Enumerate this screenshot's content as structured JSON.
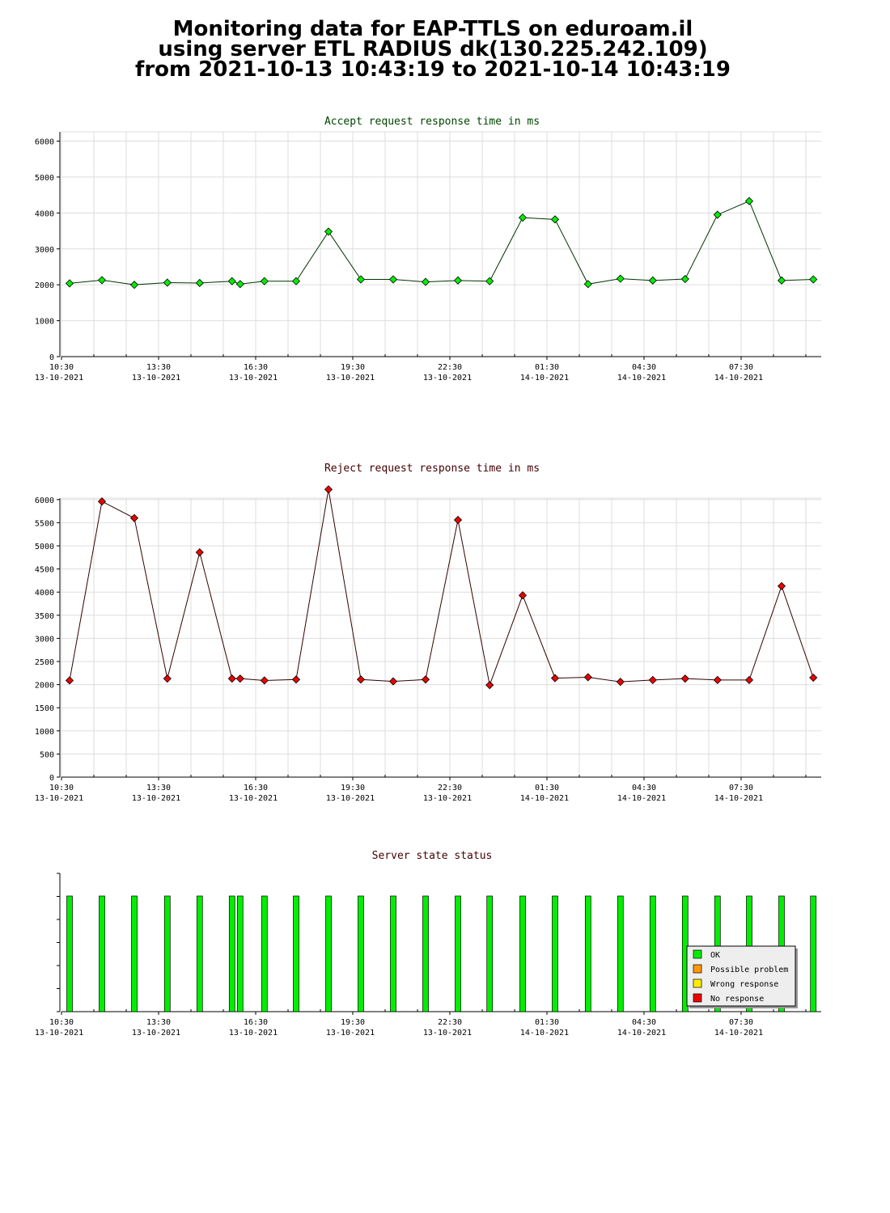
{
  "title_lines": [
    "Monitoring data for EAP-TTLS on eduroam.il",
    "using server ETL RADIUS dk(130.225.242.109)",
    "from 2021-10-13 10:43:19 to 2021-10-14 10:43:19"
  ],
  "colors": {
    "accept_line": "#003300",
    "accept_marker": "#00ee00",
    "reject_line": "#330000",
    "reject_marker": "#ee0000",
    "accept_title": "#004400",
    "reject_title": "#440000",
    "status_title": "#440000",
    "grid": "#dddddd",
    "ok": "#00ee00",
    "possible_problem": "#ff9900",
    "wrong_response": "#ffee00",
    "no_response": "#ee0000"
  },
  "x_tick_labels": [
    {
      "time": "10:30",
      "date": "13-10-2021"
    },
    {
      "time": "13:30",
      "date": "13-10-2021"
    },
    {
      "time": "16:30",
      "date": "13-10-2021"
    },
    {
      "time": "19:30",
      "date": "13-10-2021"
    },
    {
      "time": "22:30",
      "date": "13-10-2021"
    },
    {
      "time": "01:30",
      "date": "14-10-2021"
    },
    {
      "time": "04:30",
      "date": "14-10-2021"
    },
    {
      "time": "07:30",
      "date": "14-10-2021"
    }
  ],
  "chart_data": [
    {
      "type": "line",
      "title": "Accept request response time in ms",
      "x_unit": "hours since 13-10-2021 10:30",
      "xlim": [
        0,
        23.5
      ],
      "ylim": [
        0,
        6000
      ],
      "y_ticks": [
        0,
        1000,
        2000,
        3000,
        4000,
        5000,
        6000
      ],
      "grid": true,
      "series": [
        {
          "x": [
            0.25,
            1.25,
            2.25,
            3.27,
            4.27,
            5.27,
            5.52,
            6.27,
            7.25,
            8.25,
            9.25,
            10.25,
            11.25,
            12.25,
            13.23,
            14.25,
            15.25,
            16.27,
            17.27,
            18.27,
            19.27,
            20.27,
            21.25,
            22.25,
            23.23
          ],
          "values": [
            2040,
            2130,
            2000,
            2060,
            2050,
            2100,
            2020,
            2100,
            2100,
            3480,
            2150,
            2150,
            2080,
            2120,
            2100,
            3870,
            3820,
            2020,
            2170,
            2120,
            2160,
            3950,
            4330,
            2120,
            2150
          ]
        }
      ]
    },
    {
      "type": "line",
      "title": "Reject request response time in ms",
      "x_unit": "hours since 13-10-2021 10:30",
      "xlim": [
        0,
        23.5
      ],
      "ylim": [
        0,
        6250
      ],
      "y_ticks": [
        0,
        500,
        1000,
        1500,
        2000,
        2500,
        3000,
        3500,
        4000,
        4500,
        5000,
        5500,
        6000
      ],
      "grid": true,
      "series": [
        {
          "x": [
            0.25,
            1.25,
            2.25,
            3.27,
            4.27,
            5.27,
            5.52,
            6.27,
            7.25,
            8.25,
            9.25,
            10.25,
            11.25,
            12.25,
            13.23,
            14.25,
            15.25,
            16.27,
            17.27,
            18.27,
            19.27,
            20.27,
            21.25,
            22.25,
            23.23
          ],
          "values": [
            2090,
            5960,
            5600,
            2130,
            4860,
            2130,
            2130,
            2090,
            2110,
            6220,
            2110,
            2070,
            2110,
            5560,
            1990,
            3930,
            2140,
            2160,
            2060,
            2100,
            2130,
            2100,
            2100,
            4130,
            2150
          ]
        }
      ]
    },
    {
      "type": "bar",
      "title": "Server state status",
      "x_unit": "hours since 13-10-2021 10:30",
      "xlim": [
        0,
        23.5
      ],
      "legend_position": "bottom-right",
      "legend": [
        "OK",
        "Possible problem",
        "Wrong response",
        "No response"
      ],
      "series": [
        {
          "name": "OK",
          "x": [
            0.25,
            1.25,
            2.25,
            3.27,
            4.27,
            5.27,
            5.52,
            6.27,
            7.25,
            8.25,
            9.25,
            10.25,
            11.25,
            12.25,
            13.23,
            14.25,
            15.25,
            16.27,
            17.27,
            18.27,
            19.27,
            20.27,
            21.25,
            22.25,
            23.23
          ],
          "values": [
            1,
            1,
            1,
            1,
            1,
            1,
            1,
            1,
            1,
            1,
            1,
            1,
            1,
            1,
            1,
            1,
            1,
            1,
            1,
            1,
            1,
            1,
            1,
            1,
            1
          ]
        }
      ]
    }
  ]
}
